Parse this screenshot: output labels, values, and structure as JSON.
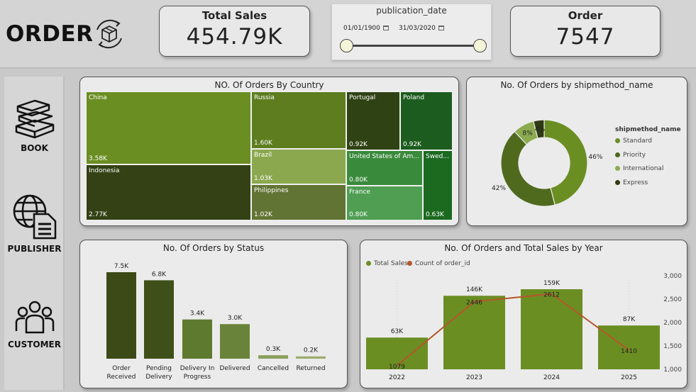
{
  "header": {
    "title": "ORDER",
    "total_sales": {
      "label": "Total Sales",
      "value": "454.79K"
    },
    "order": {
      "label": "Order",
      "value": "7547"
    }
  },
  "slicer": {
    "title": "publication_date",
    "start": "01/01/1900",
    "end": "31/03/2020"
  },
  "sidebar": {
    "items": [
      {
        "label": "BOOK",
        "icon": "books-icon"
      },
      {
        "label": "PUBLISHER",
        "icon": "globe-document-icon"
      },
      {
        "label": "CUSTOMER",
        "icon": "group-icon"
      }
    ]
  },
  "colors": {
    "olive": "#6b8e23",
    "dark": "#3b4a16",
    "mid": "#4f6a1d",
    "light": "#8caa4f",
    "darkest": "#2e3a12"
  },
  "charts": [
    {
      "type": "treemap",
      "title": "NO. Of Orders By Country",
      "tiles": [
        {
          "name": "China",
          "value": "3.58K",
          "color": "#6b8e23"
        },
        {
          "name": "Indonesia",
          "value": "2.77K",
          "color": "#334114"
        },
        {
          "name": "Russia",
          "value": "1.60K",
          "color": "#5d7d1f"
        },
        {
          "name": "Brazil",
          "value": "1.03K",
          "color": "#8ba84e"
        },
        {
          "name": "Philippines",
          "value": "1.02K",
          "color": "#627434"
        },
        {
          "name": "Portugal",
          "value": "0.92K",
          "color": "#2f4214"
        },
        {
          "name": "Poland",
          "value": "0.92K",
          "color": "#1d5c1f"
        },
        {
          "name": "United States of Am...",
          "value": "0.80K",
          "color": "#3a8a3c"
        },
        {
          "name": "France",
          "value": "0.80K",
          "color": "#4f9e52"
        },
        {
          "name": "Swed...",
          "value": "0.63K",
          "color": "#1b6a20"
        }
      ]
    },
    {
      "type": "pie",
      "title": "No. Of Orders by shipmethod_name",
      "legend_title": "shipmethod_name",
      "slices": [
        {
          "name": "Standard",
          "value": 46,
          "label": "46%",
          "color": "#6b8e23"
        },
        {
          "name": "Priority",
          "value": 42,
          "label": "42%",
          "color": "#4f6a1d"
        },
        {
          "name": "International",
          "value": 8,
          "label": "8%",
          "color": "#8caa4f"
        },
        {
          "name": "Express",
          "value": 4,
          "label": "4%",
          "color": "#2e3a12"
        }
      ]
    },
    {
      "type": "bar",
      "title": "No. Of Orders by Status",
      "categories": [
        "Order Received",
        "Pending Delivery",
        "Delivery In Progress",
        "Delivered",
        "Cancelled",
        "Returned"
      ],
      "values": [
        7.5,
        6.8,
        3.4,
        3.0,
        0.3,
        0.2
      ],
      "labels": [
        "7.5K",
        "6.8K",
        "3.4K",
        "3.0K",
        "0.3K",
        "0.2K"
      ],
      "colors": [
        "#3b4a16",
        "#3f4f19",
        "#5e7a2e",
        "#6a833a",
        "#8aa05a",
        "#9cad6c"
      ]
    },
    {
      "type": "bar+line",
      "title": "No. Of Orders and Total Sales by Year",
      "x": [
        "2022",
        "2023",
        "2024",
        "2025"
      ],
      "series": [
        {
          "name": "Total Sales",
          "values": [
            63,
            146,
            159,
            87
          ],
          "labels": [
            "63K",
            "146K",
            "159K",
            "87K"
          ],
          "color": "#6b8e23"
        },
        {
          "name": "Count of order_id",
          "values": [
            1079,
            2446,
            2612,
            1410
          ],
          "labels": [
            "1079",
            "2446",
            "2612",
            "1410"
          ],
          "color": "#b5562b"
        }
      ],
      "y2_ticks": [
        "3,000",
        "2,500",
        "2,000",
        "1,500",
        "1,000"
      ],
      "y2_range": [
        1000,
        3000
      ]
    }
  ]
}
